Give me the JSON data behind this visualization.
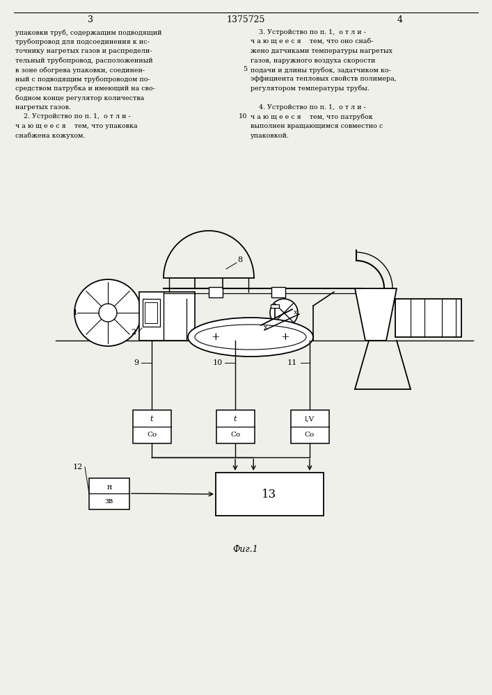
{
  "bg_color": "#f0f0eb",
  "page_width": 7.07,
  "page_height": 10.0,
  "text_left": [
    "упаковки труб, содержащим подводящий",
    "трубопровод для подсоединения к ис-",
    "точнику нагретых газов и распредели-",
    "тельный трубопровод, расположенный",
    "в зоне обогрева упаковки, соединен-",
    "ный с подводящим трубопроводом по-",
    "средством патрубка и имеющий на сво-",
    "бодном конце регулятор количества",
    "нагретых газов.",
    "    2. Устройство по п. 1,  о т л и -",
    "ч а ю щ е е с я    тем, что упаковка",
    "снабжена кожухом."
  ],
  "text_right": [
    "    3. Устройство по п. 1,  о т л и -",
    "ч а ю щ е е с я    тем, что оно снаб-",
    "жено датчиками температуры нагретых",
    "газов, наружного воздуха скорости",
    "подачи и длины трубок, задатчиком ко-",
    "эффициента тепловых свойств полимера,",
    "регулятором температуры трубы.",
    "",
    "    4. Устройство по п. 1,  о т л и -",
    "ч а ю щ е е с я    тем, что патрубок",
    "выполнен вращающимся совместно с",
    "упаковкой."
  ]
}
